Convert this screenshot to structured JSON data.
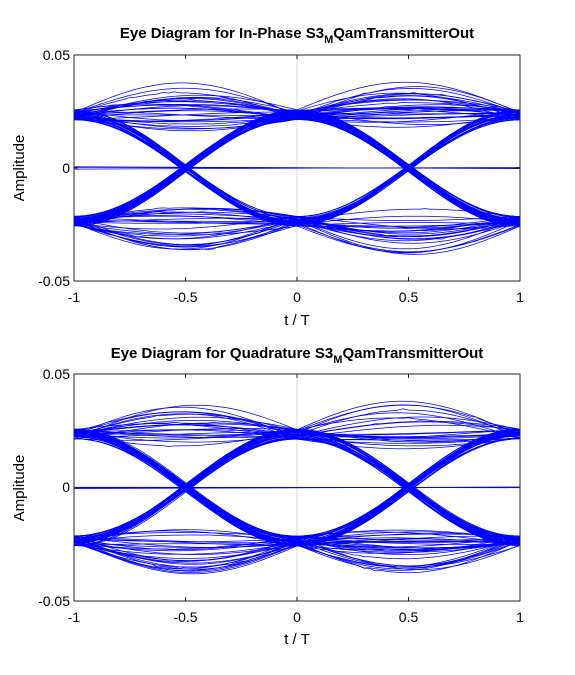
{
  "figure": {
    "background": "#ffffff",
    "trace_color": "#0000ff",
    "grid_color": "#d9d9d9"
  },
  "chart_data": [
    {
      "type": "line",
      "title": {
        "main": "Eye Diagram for In-Phase S3",
        "subscript": "M",
        "rest": "QamTransmitterOut"
      },
      "xlabel": "t / T",
      "ylabel": "Amplitude",
      "xlim": [
        -1,
        1
      ],
      "ylim": [
        -0.05,
        0.05
      ],
      "xticks": [
        -1,
        -0.5,
        0,
        0.5,
        1
      ],
      "xtick_labels": [
        "-1",
        "-0.5",
        "0",
        "0.5",
        "1"
      ],
      "yticks": [
        -0.05,
        0,
        0.05
      ],
      "ytick_labels": [
        "-0.05",
        "0",
        "0.05"
      ],
      "grid": "vertical line at t/T = 0",
      "levels": [
        0.0235,
        -0.0235
      ],
      "sample_instants": [
        -1,
        0,
        1
      ],
      "peak_amplitude_at_half_symbol": 0.045,
      "trace_count": 120
    },
    {
      "type": "line",
      "title": {
        "main": "Eye Diagram for Quadrature S3",
        "subscript": "M",
        "rest": "QamTransmitterOut"
      },
      "xlabel": "t / T",
      "ylabel": "Amplitude",
      "xlim": [
        -1,
        1
      ],
      "ylim": [
        -0.05,
        0.05
      ],
      "xticks": [
        -1,
        -0.5,
        0,
        0.5,
        1
      ],
      "xtick_labels": [
        "-1",
        "-0.5",
        "0",
        "0.5",
        "1"
      ],
      "yticks": [
        -0.05,
        0,
        0.05
      ],
      "ytick_labels": [
        "-0.05",
        "0",
        "0.05"
      ],
      "grid": "vertical line at t/T = 0",
      "levels": [
        0.0235,
        -0.0235
      ],
      "sample_instants": [
        -1,
        0,
        1
      ],
      "peak_amplitude_at_half_symbol": 0.045,
      "trace_count": 120
    }
  ]
}
